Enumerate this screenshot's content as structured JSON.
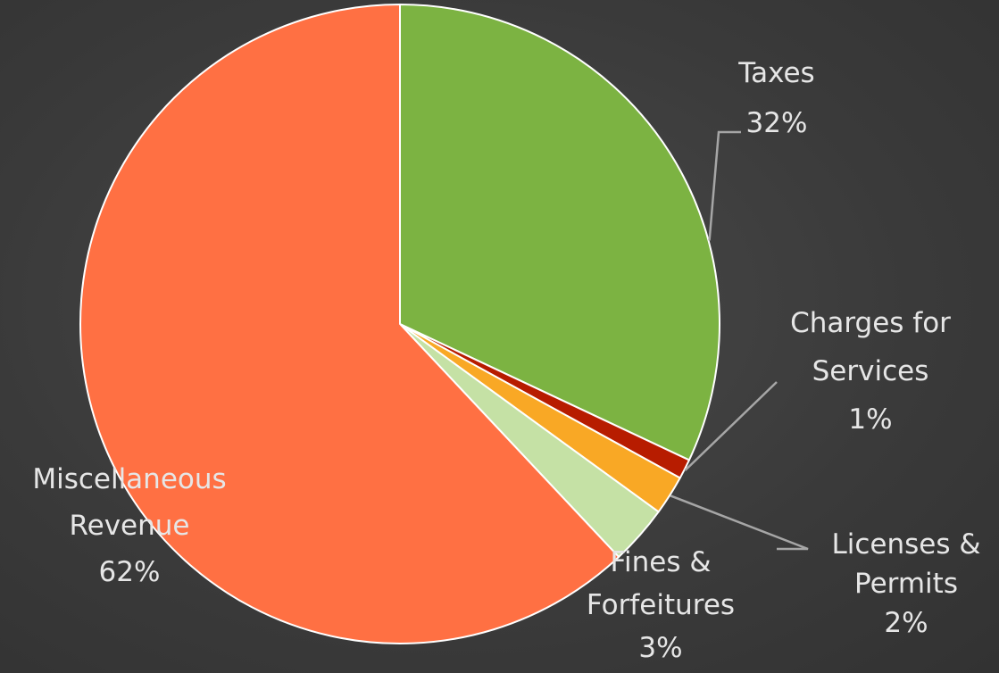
{
  "chart_data": {
    "type": "pie",
    "title": "",
    "slices": [
      {
        "name": "Taxes",
        "value": 32,
        "label": "32%",
        "color": "#7cb342"
      },
      {
        "name": "Charges for Services",
        "value": 1,
        "label": "1%",
        "color": "#b71c00"
      },
      {
        "name": "Licenses & Permits",
        "value": 2,
        "label": "2%",
        "color": "#f9a825"
      },
      {
        "name": "Fines & Forfeitures",
        "value": 3,
        "label": "3%",
        "color": "#c5e1a5"
      },
      {
        "name": "Miscellaneous Revenue",
        "value": 62,
        "label": "62%",
        "color": "#ff7043"
      }
    ],
    "label_lines": [
      [
        "Taxes",
        "32%"
      ],
      [
        "Charges for",
        "Services",
        "1%"
      ],
      [
        "Licenses &",
        "Permits",
        "2%"
      ],
      [
        "Fines &",
        "Forfeitures",
        "3%"
      ],
      [
        "Miscellaneous",
        "Revenue",
        "62%"
      ]
    ],
    "start_angle_deg": 0,
    "direction": "clockwise",
    "legend": "none",
    "data_labels": "outside with leader lines"
  }
}
